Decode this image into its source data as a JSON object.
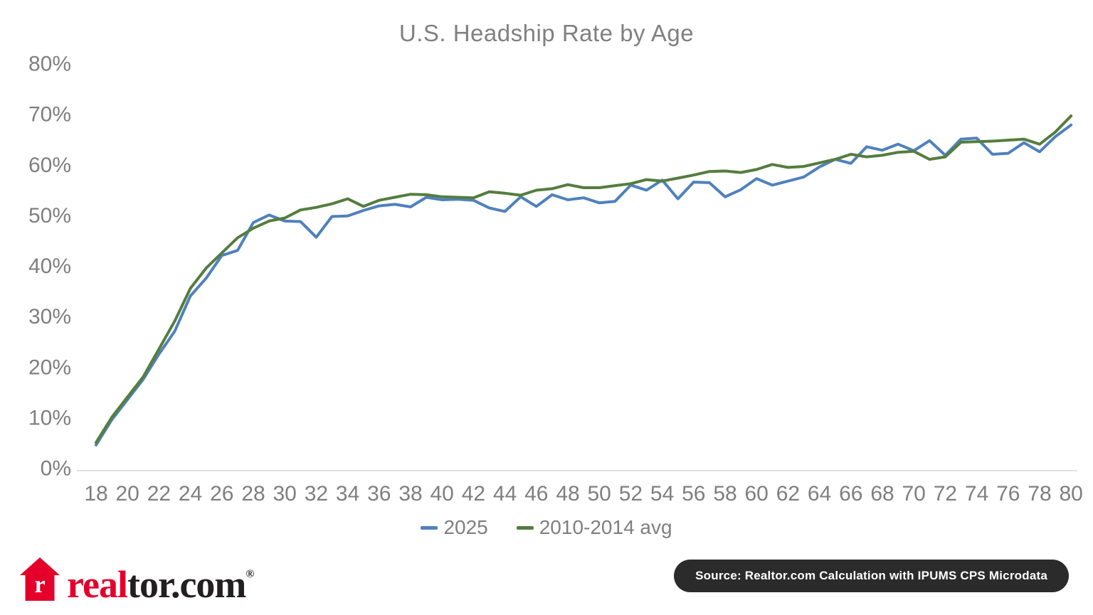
{
  "title": "U.S. Headship Rate by Age",
  "colors": {
    "accent_blue": "#4f81bd",
    "accent_green": "#557d3e",
    "axis_text": "#7f7f7f",
    "baseline": "#d9d9d9",
    "badge_bg": "#2b2b2b",
    "logo_red": "#e4002b",
    "logo_dark": "#231f20"
  },
  "legend": {
    "items": [
      {
        "label": "2025",
        "color": "#4f81bd"
      },
      {
        "label": "2010-2014 avg",
        "color": "#557d3e"
      }
    ]
  },
  "footer": {
    "logo_real": "real",
    "logo_tor": "tor.com",
    "logo_reg": "®",
    "source_badge": "Source: Realtor.com Calculation with IPUMS CPS Microdata"
  },
  "chart_data": {
    "type": "line",
    "title": "U.S. Headship Rate by Age",
    "xlabel": "",
    "ylabel": "",
    "x": [
      18,
      19,
      20,
      21,
      22,
      23,
      24,
      25,
      26,
      27,
      28,
      29,
      30,
      31,
      32,
      33,
      34,
      35,
      36,
      37,
      38,
      39,
      40,
      41,
      42,
      43,
      44,
      45,
      46,
      47,
      48,
      49,
      50,
      51,
      52,
      53,
      54,
      55,
      56,
      57,
      58,
      59,
      60,
      61,
      62,
      63,
      64,
      65,
      66,
      67,
      68,
      69,
      70,
      71,
      72,
      73,
      74,
      75,
      76,
      77,
      78,
      79,
      80
    ],
    "x_tick_labels": [
      18,
      20,
      22,
      24,
      26,
      28,
      30,
      32,
      34,
      36,
      38,
      40,
      42,
      44,
      46,
      48,
      50,
      52,
      54,
      56,
      58,
      60,
      62,
      64,
      66,
      68,
      70,
      72,
      74,
      76,
      78,
      80
    ],
    "y_ticks": [
      {
        "value": 0,
        "label": "0%"
      },
      {
        "value": 10,
        "label": "10%"
      },
      {
        "value": 20,
        "label": "20%"
      },
      {
        "value": 30,
        "label": "30%"
      },
      {
        "value": 40,
        "label": "40%"
      },
      {
        "value": 50,
        "label": "50%"
      },
      {
        "value": 60,
        "label": "60%"
      },
      {
        "value": 70,
        "label": "70%"
      },
      {
        "value": 80,
        "label": "80%"
      }
    ],
    "ylim": [
      0,
      80
    ],
    "grid": false,
    "legend_position": "bottom",
    "series": [
      {
        "name": "2025",
        "color": "#4f81bd",
        "values": [
          4.5,
          9.5,
          13.5,
          17.5,
          22.5,
          27,
          34,
          37.5,
          42,
          43,
          48.5,
          50,
          48.8,
          48.7,
          45.6,
          49.7,
          49.8,
          50.9,
          51.8,
          52.1,
          51.6,
          53.5,
          53,
          53.1,
          52.9,
          51.4,
          50.7,
          53.6,
          51.7,
          54,
          53,
          53.4,
          52.4,
          52.7,
          55.9,
          54.9,
          56.9,
          53.2,
          56.5,
          56.4,
          53.6,
          55,
          57.2,
          55.9,
          56.7,
          57.5,
          59.5,
          61,
          60.2,
          63.5,
          62.8,
          64,
          62.7,
          64.7,
          61.8,
          65,
          65.2,
          62,
          62.2,
          64.3,
          62.5,
          65.5,
          67.8
        ]
      },
      {
        "name": "2010-2014 avg",
        "color": "#557d3e",
        "values": [
          5,
          10,
          14,
          18,
          23.5,
          29,
          35.5,
          39.5,
          42.5,
          45.5,
          47.4,
          48.8,
          49.4,
          51,
          51.5,
          52.2,
          53.2,
          51.7,
          52.9,
          53.5,
          54.1,
          54,
          53.6,
          53.5,
          53.4,
          54.6,
          54.3,
          53.9,
          54.9,
          55.2,
          56,
          55.4,
          55.4,
          55.8,
          56.2,
          57,
          56.7,
          57.3,
          57.9,
          58.6,
          58.7,
          58.4,
          59,
          60,
          59.4,
          59.6,
          60.3,
          61,
          62,
          61.5,
          61.8,
          62.4,
          62.6,
          61,
          61.5,
          64.4,
          64.5,
          64.6,
          64.8,
          65,
          64,
          66.4,
          69.6
        ]
      }
    ]
  }
}
